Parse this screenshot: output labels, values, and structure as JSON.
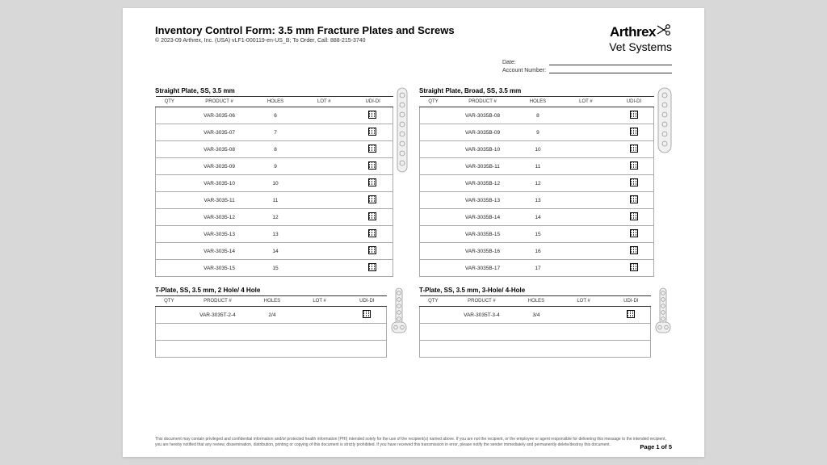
{
  "header": {
    "title": "Inventory Control Form: 3.5 mm Fracture Plates and Screws",
    "subtitle": "© 2023-09 Arthrex, Inc. (USA) vLF1-000119-en-US_B; To Order, Call: 888-215-3740",
    "brand_top": "Arthrex",
    "brand_sub": "Vet Systems"
  },
  "meta": [
    {
      "label": "Date:",
      "value": ""
    },
    {
      "label": "Account Number:",
      "value": ""
    }
  ],
  "columns": {
    "qty": "QTY",
    "product": "PRODUCT #",
    "holes": "HOLES",
    "lot": "LOT #",
    "udi": "UDI-DI"
  },
  "sections": {
    "left": [
      {
        "title": "Straight Plate, SS, 3.5 mm",
        "rows": [
          {
            "p": "VAR-3035-06",
            "h": "6"
          },
          {
            "p": "VAR-3035-07",
            "h": "7"
          },
          {
            "p": "VAR-3035-08",
            "h": "8"
          },
          {
            "p": "VAR-3035-09",
            "h": "9"
          },
          {
            "p": "VAR-3035-10",
            "h": "10"
          },
          {
            "p": "VAR-3035-11",
            "h": "11"
          },
          {
            "p": "VAR-3035-12",
            "h": "12"
          },
          {
            "p": "VAR-3035-13",
            "h": "13"
          },
          {
            "p": "VAR-3035-14",
            "h": "14"
          },
          {
            "p": "VAR-3035-15",
            "h": "15"
          }
        ],
        "plate": {
          "holes": 8,
          "type": "straight"
        }
      },
      {
        "title": "T-Plate, SS, 3.5 mm, 2 Hole/ 4 Hole",
        "rows": [
          {
            "p": "VAR-3035T-2-4",
            "h": "2/4"
          },
          {
            "p": "",
            "h": ""
          },
          {
            "p": "",
            "h": ""
          }
        ],
        "plate": {
          "type": "t-plate"
        }
      }
    ],
    "right": [
      {
        "title": "Straight Plate, Broad, SS, 3.5 mm",
        "rows": [
          {
            "p": "VAR-3035B-08",
            "h": "8"
          },
          {
            "p": "VAR-3035B-09",
            "h": "9"
          },
          {
            "p": "VAR-3035B-10",
            "h": "10"
          },
          {
            "p": "VAR-3035B-11",
            "h": "11"
          },
          {
            "p": "VAR-3035B-12",
            "h": "12"
          },
          {
            "p": "VAR-3035B-13",
            "h": "13"
          },
          {
            "p": "VAR-3035B-14",
            "h": "14"
          },
          {
            "p": "VAR-3035B-15",
            "h": "15"
          },
          {
            "p": "VAR-3035B-16",
            "h": "16"
          },
          {
            "p": "VAR-3035B-17",
            "h": "17"
          }
        ],
        "plate": {
          "holes": 6,
          "type": "broad"
        }
      },
      {
        "title": "T-Plate, SS, 3.5 mm, 3-Hole/ 4-Hole",
        "rows": [
          {
            "p": "VAR-3035T-3-4",
            "h": "3/4"
          },
          {
            "p": "",
            "h": ""
          },
          {
            "p": "",
            "h": ""
          }
        ],
        "plate": {
          "type": "t-plate"
        }
      }
    ]
  },
  "footer": {
    "disclaimer": "This document may contain privileged and confidential information and/or protected health information (PHI) intended solely for the use of the recipient(s) named above. If you are not the recipient, or the employee or agent responsible for delivering this message to the intended recipient, you are hereby notified that any review, dissemination, distribution, printing or copying of this document is strictly prohibited. If you have received this transmission in error, please notify the sender immediately and permanently delete/destroy this document.",
    "page": "Page 1 of 5"
  },
  "colors": {
    "stroke": "#999",
    "fill": "#f0f0f0"
  }
}
